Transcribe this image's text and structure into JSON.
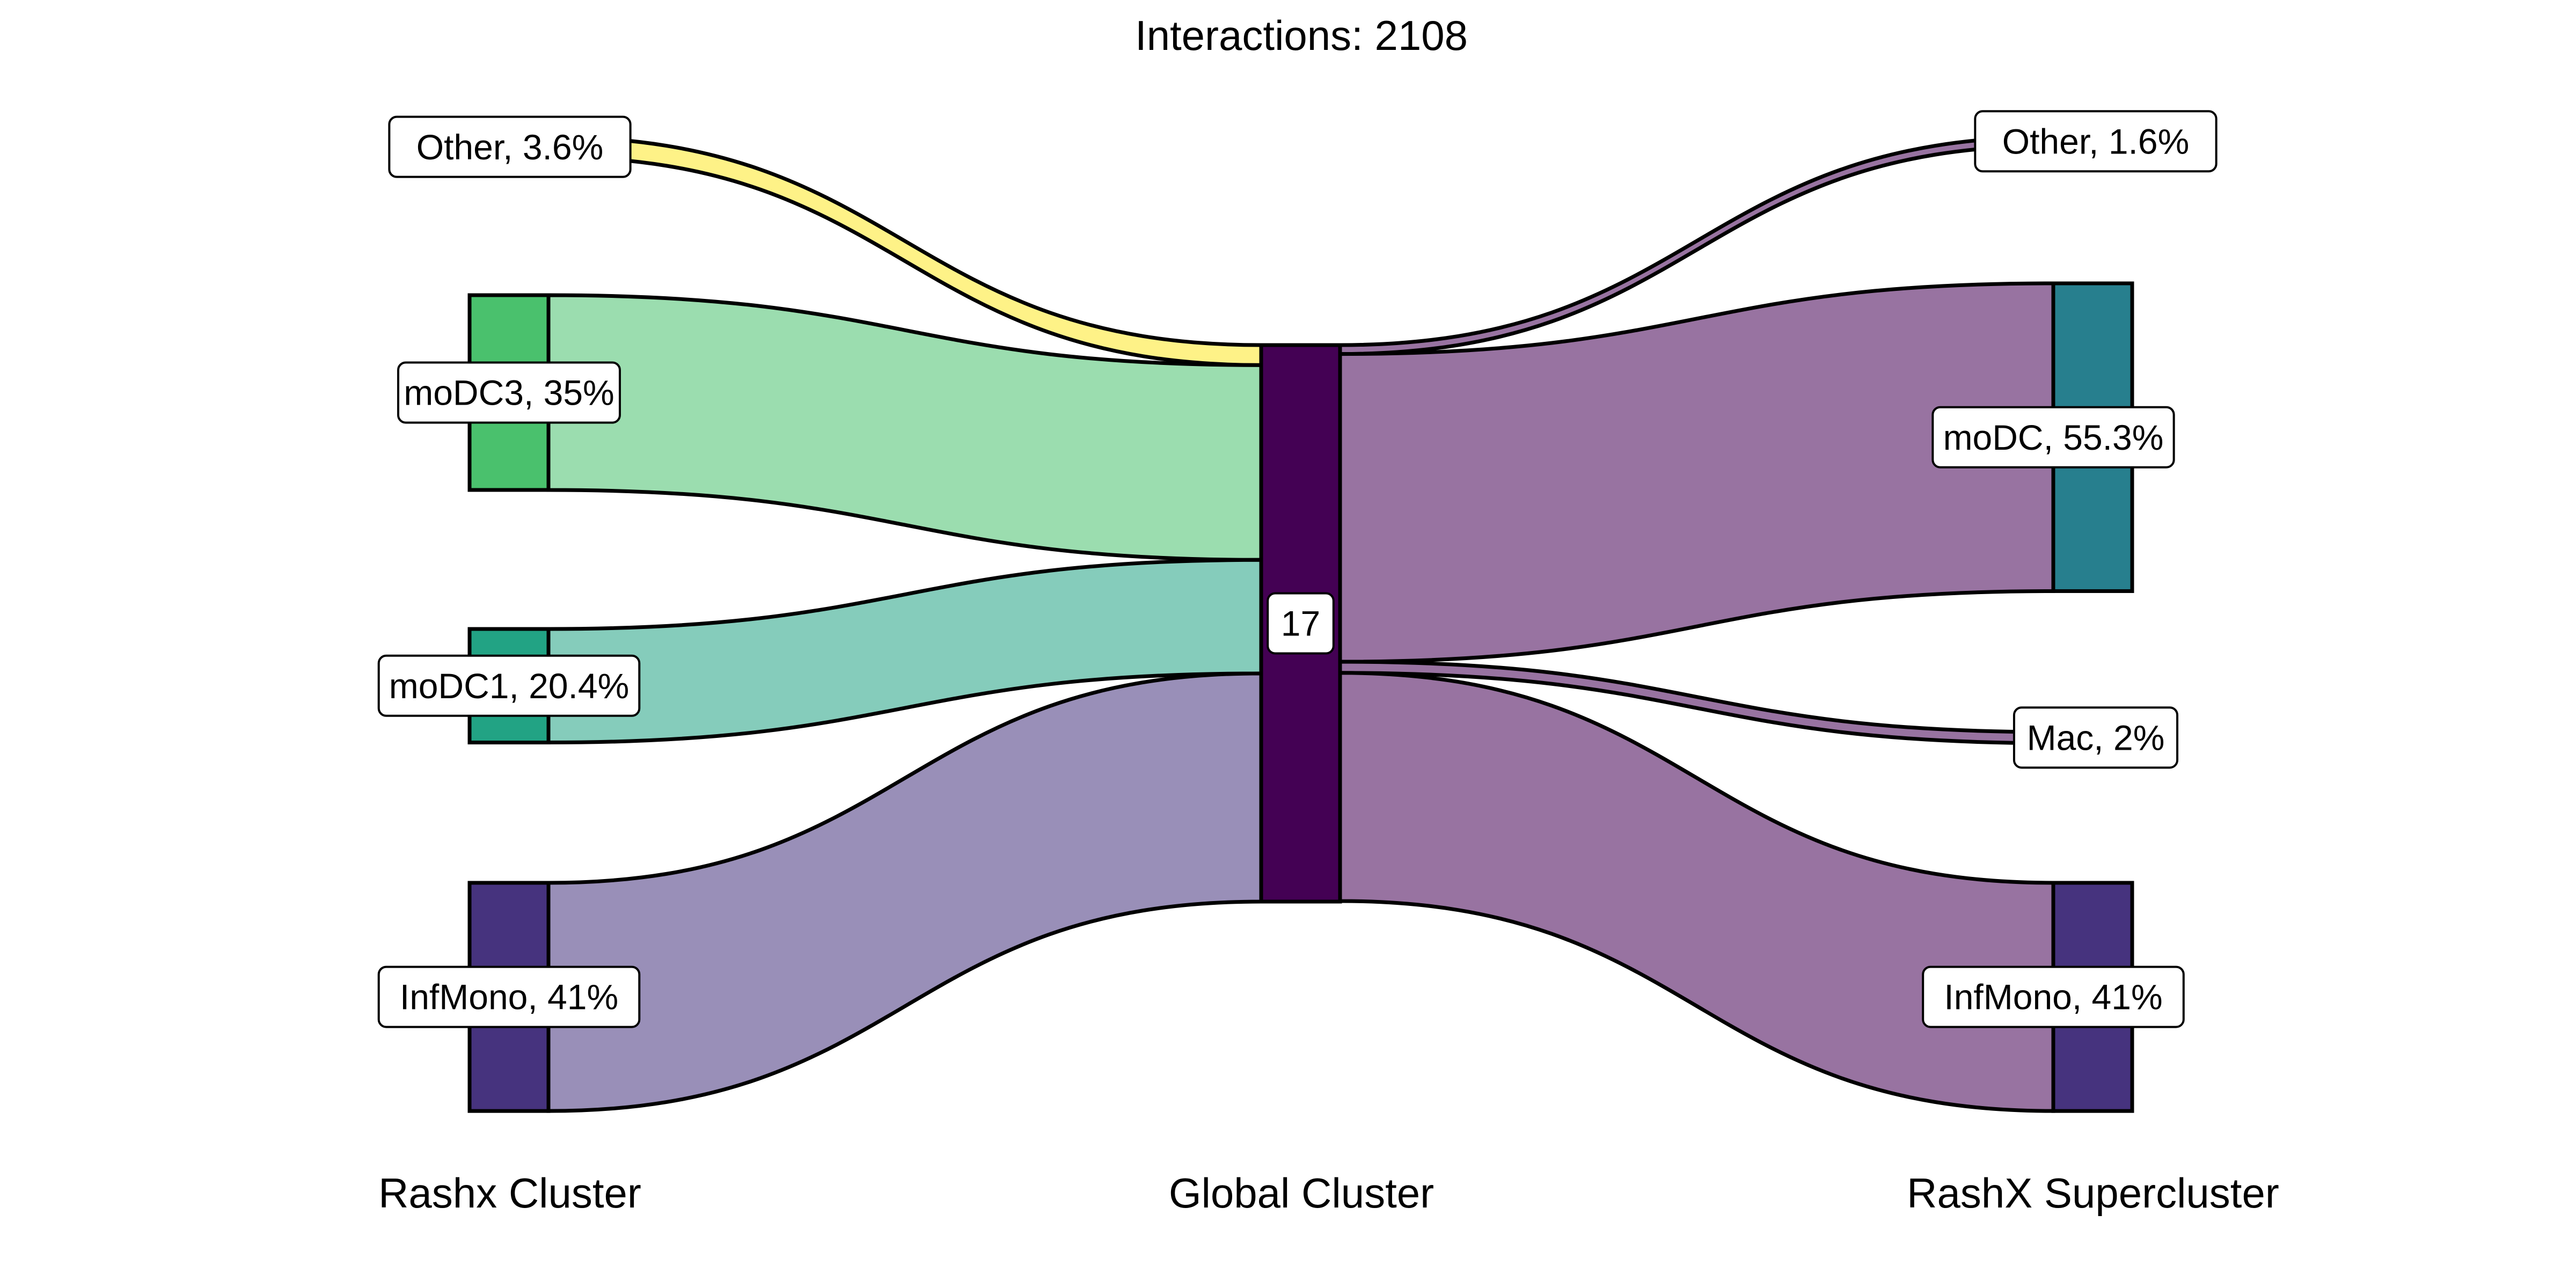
{
  "title": "Interactions: 2108",
  "axes": {
    "left": "Rashx Cluster",
    "middle": "Global Cluster",
    "right": "RashX Supercluster"
  },
  "chart_data": {
    "type": "sankey",
    "total_interactions": 2108,
    "left_nodes": [
      {
        "label": "Other, 3.6%",
        "name": "Other",
        "percent": 3.6,
        "color": "#FDE725"
      },
      {
        "label": "moDC3, 35%",
        "name": "moDC3",
        "percent": 35,
        "color": "#4AC16D"
      },
      {
        "label": "moDC1, 20.4%",
        "name": "moDC1",
        "percent": 20.4,
        "color": "#22A384"
      },
      {
        "label": "InfMono, 41%",
        "name": "InfMono",
        "percent": 41,
        "color": "#46337E"
      }
    ],
    "middle_nodes": [
      {
        "label": "17",
        "name": "17",
        "color": "#440154"
      }
    ],
    "right_nodes": [
      {
        "label": "Other, 1.6%",
        "name": "Other",
        "percent": 1.6,
        "color": "#440154"
      },
      {
        "label": "moDC, 55.3%",
        "name": "moDC",
        "percent": 55.3,
        "color": "#277F8E"
      },
      {
        "label": "Mac, 2%",
        "name": "Mac",
        "percent": 2,
        "color": "#440154"
      },
      {
        "label": "InfMono, 41%",
        "name": "InfMono",
        "percent": 41,
        "color": "#46337E"
      }
    ],
    "flows": [
      {
        "from": "Other",
        "to": "17",
        "percent": 3.6
      },
      {
        "from": "moDC3",
        "to": "17",
        "percent": 35
      },
      {
        "from": "moDC1",
        "to": "17",
        "percent": 20.4
      },
      {
        "from": "InfMono",
        "to": "17",
        "percent": 41
      },
      {
        "from": "17",
        "to": "Other",
        "percent": 1.6
      },
      {
        "from": "17",
        "to": "moDC",
        "percent": 55.3
      },
      {
        "from": "17",
        "to": "Mac",
        "percent": 2
      },
      {
        "from": "17",
        "to": "InfMono",
        "percent": 41
      }
    ]
  }
}
